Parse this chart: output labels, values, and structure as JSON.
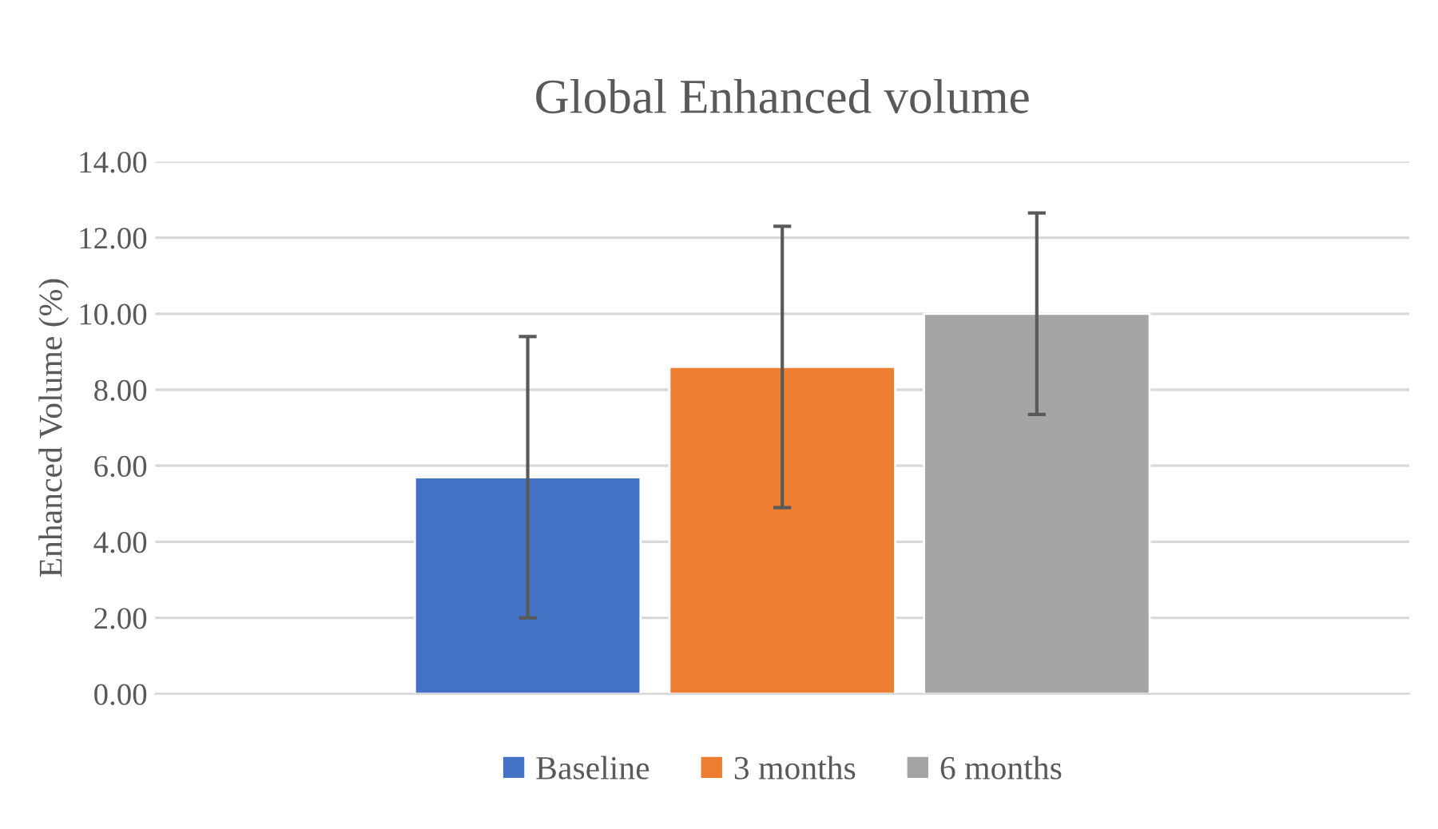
{
  "chart_data": {
    "type": "bar",
    "title": "Global Enhanced volume",
    "ylabel": "Enhanced Volume (%)",
    "categories": [
      null
    ],
    "series": [
      {
        "name": "Baseline",
        "color": "#4472c4",
        "values": [
          5.7
        ],
        "errors": [
          3.7
        ]
      },
      {
        "name": "3 months",
        "color": "#ed7d31",
        "values": [
          8.6
        ],
        "errors": [
          3.7
        ]
      },
      {
        "name": "6 months",
        "color": "#a5a5a5",
        "values": [
          10.0
        ],
        "errors": [
          2.65
        ]
      }
    ],
    "ylim": [
      0,
      14
    ],
    "yticks": [
      {
        "value": 0,
        "label": "0.00"
      },
      {
        "value": 2,
        "label": "2.00"
      },
      {
        "value": 4,
        "label": "4.00"
      },
      {
        "value": 6,
        "label": "6.00"
      },
      {
        "value": 8,
        "label": "8.00"
      },
      {
        "value": 10,
        "label": "10.00"
      },
      {
        "value": 12,
        "label": "12.00"
      },
      {
        "value": 14,
        "label": "14.00"
      }
    ],
    "grid": "y",
    "legend": "bottom"
  }
}
